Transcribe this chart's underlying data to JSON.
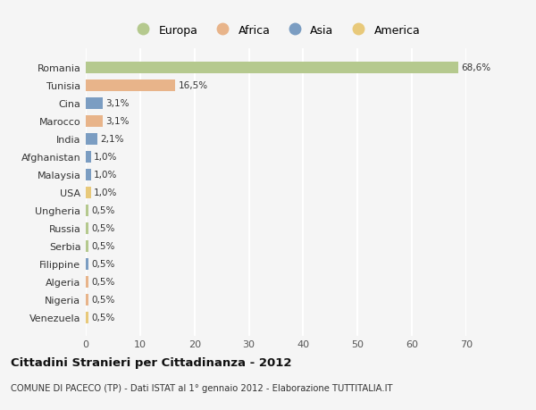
{
  "countries": [
    "Romania",
    "Tunisia",
    "Cina",
    "Marocco",
    "India",
    "Afghanistan",
    "Malaysia",
    "USA",
    "Ungheria",
    "Russia",
    "Serbia",
    "Filippine",
    "Algeria",
    "Nigeria",
    "Venezuela"
  ],
  "values": [
    68.6,
    16.5,
    3.1,
    3.1,
    2.1,
    1.0,
    1.0,
    1.0,
    0.5,
    0.5,
    0.5,
    0.5,
    0.5,
    0.5,
    0.5
  ],
  "labels": [
    "68,6%",
    "16,5%",
    "3,1%",
    "3,1%",
    "2,1%",
    "1,0%",
    "1,0%",
    "1,0%",
    "0,5%",
    "0,5%",
    "0,5%",
    "0,5%",
    "0,5%",
    "0,5%",
    "0,5%"
  ],
  "colors": [
    "#b5c98e",
    "#e8b48a",
    "#7b9dc2",
    "#e8b48a",
    "#7b9dc2",
    "#7b9dc2",
    "#7b9dc2",
    "#e8c97a",
    "#b5c98e",
    "#b5c98e",
    "#b5c98e",
    "#7b9dc2",
    "#e8b48a",
    "#e8b48a",
    "#e8c97a"
  ],
  "legend_labels": [
    "Europa",
    "Africa",
    "Asia",
    "America"
  ],
  "legend_colors": [
    "#b5c98e",
    "#e8b48a",
    "#7b9dc2",
    "#e8c97a"
  ],
  "title": "Cittadini Stranieri per Cittadinanza - 2012",
  "subtitle": "COMUNE DI PACECO (TP) - Dati ISTAT al 1° gennaio 2012 - Elaborazione TUTTITALIA.IT",
  "xlim": [
    0,
    70
  ],
  "xticks": [
    0,
    10,
    20,
    30,
    40,
    50,
    60,
    70
  ],
  "bg_color": "#f5f5f5",
  "grid_color": "#ffffff",
  "bar_height": 0.65
}
